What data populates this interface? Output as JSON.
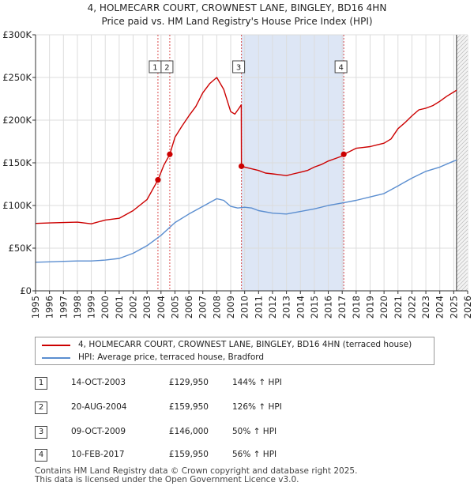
{
  "header": {
    "title_line1": "4, HOLMECARR COURT, CROWNEST LANE, BINGLEY, BD16 4HN",
    "title_line2": "Price paid vs. HM Land Registry's House Price Index (HPI)"
  },
  "colors": {
    "property": "#cc0000",
    "hpi": "#5b8ed0",
    "shade": "#dde6f5",
    "marker_line": "#cc0000"
  },
  "chart_data": {
    "type": "line",
    "title": "Price paid vs. HM Land Registry's House Price Index (HPI)",
    "xlabel": "",
    "ylabel": "",
    "xlim": [
      1995,
      2026
    ],
    "ylim": [
      0,
      300000
    ],
    "x_ticks": [
      "1995",
      "1996",
      "1997",
      "1998",
      "1999",
      "2000",
      "2001",
      "2002",
      "2003",
      "2004",
      "2005",
      "2006",
      "2007",
      "2008",
      "2009",
      "2010",
      "2011",
      "2012",
      "2013",
      "2014",
      "2015",
      "2016",
      "2017",
      "2018",
      "2019",
      "2020",
      "2021",
      "2022",
      "2023",
      "2024",
      "2025",
      "2026"
    ],
    "y_ticks": [
      {
        "value": 0,
        "label": "£0"
      },
      {
        "value": 50000,
        "label": "£50K"
      },
      {
        "value": 100000,
        "label": "£100K"
      },
      {
        "value": 150000,
        "label": "£150K"
      },
      {
        "value": 200000,
        "label": "£200K"
      },
      {
        "value": 250000,
        "label": "£250K"
      },
      {
        "value": 300000,
        "label": "£300K"
      }
    ],
    "grid": true,
    "shaded_ranges": [
      [
        2009.77,
        2017.11
      ]
    ],
    "forecast_from": 2025.2,
    "series": [
      {
        "name": "4, HOLMECARR COURT, CROWNEST LANE, BINGLEY, BD16 4HN (terraced house)",
        "x": [
          1995.0,
          1996.0,
          1997.0,
          1998.0,
          1999.0,
          2000.0,
          2001.0,
          2002.0,
          2003.0,
          2003.78,
          2004.2,
          2004.63,
          2005.0,
          2005.5,
          2006.0,
          2006.5,
          2007.0,
          2007.5,
          2008.0,
          2008.5,
          2009.0,
          2009.3,
          2009.6,
          2009.76,
          2009.77,
          2010.0,
          2010.5,
          2011.0,
          2011.5,
          2012.0,
          2012.5,
          2013.0,
          2013.5,
          2014.0,
          2014.5,
          2015.0,
          2015.5,
          2016.0,
          2016.5,
          2017.0,
          2017.11,
          2017.5,
          2018.0,
          2018.5,
          2019.0,
          2019.5,
          2020.0,
          2020.5,
          2021.0,
          2021.5,
          2022.0,
          2022.5,
          2023.0,
          2023.5,
          2024.0,
          2024.5,
          2025.0,
          2025.2
        ],
        "values": [
          79000,
          79500,
          80000,
          80500,
          78500,
          83000,
          85000,
          94000,
          107000,
          129950,
          147000,
          159950,
          180000,
          193000,
          205000,
          216000,
          232000,
          243000,
          250000,
          236000,
          210000,
          207000,
          214000,
          218000,
          146000,
          145000,
          143000,
          141000,
          138000,
          137000,
          136000,
          135000,
          137000,
          139000,
          141000,
          145000,
          148000,
          152000,
          155000,
          158000,
          159950,
          163000,
          167000,
          168000,
          169000,
          171000,
          173000,
          178000,
          190000,
          197000,
          205000,
          212000,
          214000,
          217000,
          222000,
          228000,
          233000,
          235000
        ]
      },
      {
        "name": "HPI: Average price, terraced house, Bradford",
        "x": [
          1995.0,
          1996.0,
          1997.0,
          1998.0,
          1999.0,
          2000.0,
          2001.0,
          2002.0,
          2003.0,
          2004.0,
          2005.0,
          2006.0,
          2007.0,
          2008.0,
          2008.5,
          2009.0,
          2009.5,
          2010.0,
          2010.5,
          2011.0,
          2012.0,
          2013.0,
          2014.0,
          2015.0,
          2016.0,
          2017.0,
          2018.0,
          2019.0,
          2020.0,
          2021.0,
          2022.0,
          2023.0,
          2024.0,
          2025.0,
          2025.2
        ],
        "values": [
          33500,
          34000,
          34500,
          35000,
          35000,
          36000,
          38000,
          44000,
          53000,
          65000,
          80000,
          90000,
          99000,
          108000,
          106000,
          99000,
          97000,
          98000,
          97000,
          94000,
          91000,
          90000,
          93000,
          96000,
          100000,
          103000,
          106000,
          110000,
          114000,
          123000,
          132000,
          140000,
          145000,
          152000,
          153000
        ]
      }
    ],
    "annotations": [
      {
        "label": "1",
        "x": 2003.78,
        "value": 129950
      },
      {
        "label": "2",
        "x": 2004.63,
        "value": 159950
      },
      {
        "label": "3",
        "x": 2009.77,
        "value": 146000
      },
      {
        "label": "4",
        "x": 2017.11,
        "value": 159950
      }
    ]
  },
  "legend": {
    "property_label": "4, HOLMECARR COURT, CROWNEST LANE, BINGLEY, BD16 4HN (terraced house)",
    "hpi_label": "HPI: Average price, terraced house, Bradford"
  },
  "transactions": [
    {
      "num": "1",
      "date": "14-OCT-2003",
      "price": "£129,950",
      "hpi": "144% ↑ HPI"
    },
    {
      "num": "2",
      "date": "20-AUG-2004",
      "price": "£159,950",
      "hpi": "126% ↑ HPI"
    },
    {
      "num": "3",
      "date": "09-OCT-2009",
      "price": "£146,000",
      "hpi": "50% ↑ HPI"
    },
    {
      "num": "4",
      "date": "10-FEB-2017",
      "price": "£159,950",
      "hpi": "56% ↑ HPI"
    }
  ],
  "footer": {
    "line1": "Contains HM Land Registry data © Crown copyright and database right 2025.",
    "line2": "This data is licensed under the Open Government Licence v3.0."
  }
}
